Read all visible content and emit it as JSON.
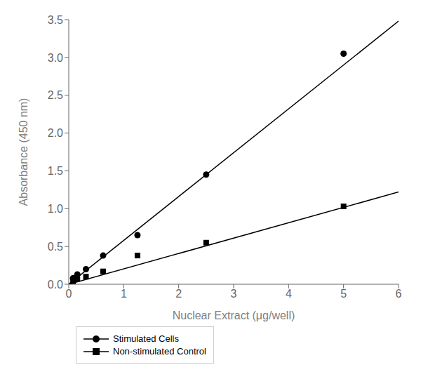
{
  "chart_data": {
    "type": "scatter",
    "x_label": "Nuclear Extract (μg/well)",
    "y_label": "Absorbance (450 nm)",
    "xlim": [
      0,
      6
    ],
    "ylim": [
      0,
      3.5
    ],
    "xticks": [
      0,
      1,
      2,
      3,
      4,
      5,
      6
    ],
    "yticks": [
      {
        "value": 0,
        "label": "0.0"
      },
      0.5,
      {
        "value": 1,
        "label": "1.0"
      },
      1.5,
      {
        "value": 2,
        "label": "2.0"
      },
      2.5,
      {
        "value": 3,
        "label": "3.0"
      },
      3.5
    ],
    "grid": false,
    "legend": "bottom",
    "series": [
      {
        "name": "Stimulated Cells",
        "type": "scatter",
        "marker": "circle",
        "color": "#000000",
        "x": [
          0.078,
          0.156,
          0.313,
          0.625,
          1.25,
          2.5,
          5.0
        ],
        "values": [
          0.08,
          0.13,
          0.2,
          0.38,
          0.65,
          1.45,
          3.05
        ],
        "fit": {
          "x": [
            0.0,
            6.0
          ],
          "values": [
            0.0,
            3.48
          ],
          "color": "#000000"
        }
      },
      {
        "name": "Non-stimulated Control",
        "type": "scatter",
        "marker": "square",
        "color": "#000000",
        "x": [
          0.078,
          0.156,
          0.313,
          0.625,
          1.25,
          2.5,
          5.0
        ],
        "values": [
          0.04,
          0.07,
          0.1,
          0.17,
          0.38,
          0.55,
          1.03
        ],
        "fit": {
          "x": [
            0.0,
            6.0
          ],
          "values": [
            0.0,
            1.22
          ],
          "color": "#000000"
        }
      }
    ]
  }
}
